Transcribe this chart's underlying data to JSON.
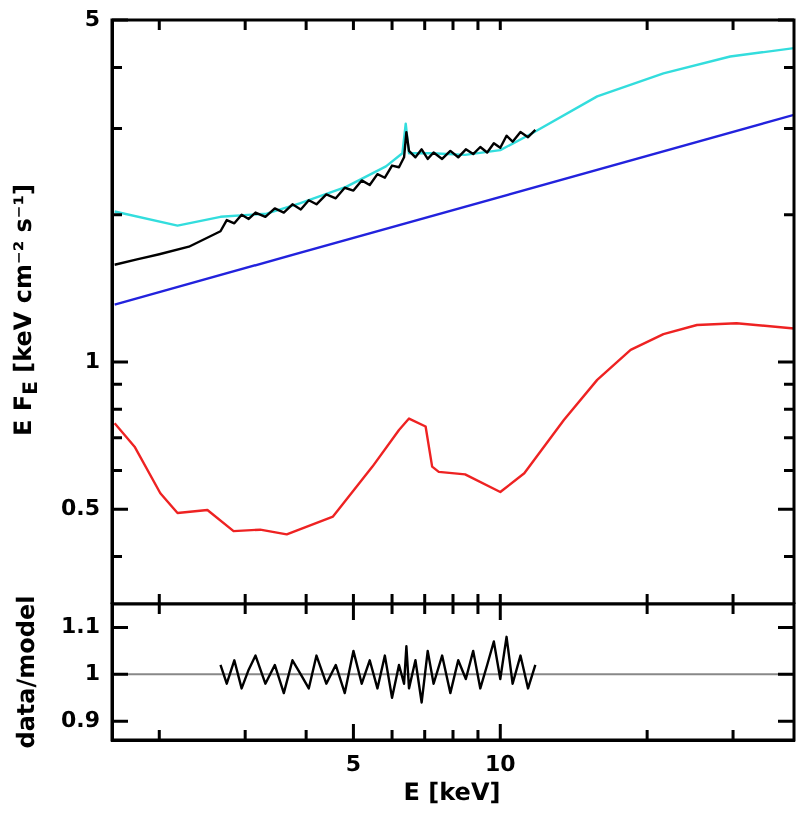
{
  "chart_data": [
    {
      "type": "line",
      "ylabel": "E F$_{E}$ [keV cm⁻² s⁻¹]",
      "log": "xy",
      "tick_labels": "y",
      "xlim": [
        1.6,
        40
      ],
      "ylim": [
        0.32,
        5
      ],
      "xticks": [
        {
          "value": 2,
          "label": null
        },
        {
          "value": 3,
          "label": null
        },
        {
          "value": 4,
          "label": null
        },
        {
          "value": 5,
          "label": null
        },
        {
          "value": 6,
          "label": null
        },
        {
          "value": 7,
          "label": null
        },
        {
          "value": 8,
          "label": null
        },
        {
          "value": 9,
          "label": null
        },
        {
          "value": 10,
          "label": null
        },
        {
          "value": 20,
          "label": null
        },
        {
          "value": 30,
          "label": null
        }
      ],
      "yticks": [
        {
          "value": 0.4,
          "label": null
        },
        0.5,
        {
          "value": 0.6,
          "label": null
        },
        {
          "value": 0.7,
          "label": null
        },
        {
          "value": 0.8,
          "label": null
        },
        {
          "value": 0.9,
          "label": null
        },
        1,
        {
          "value": 2,
          "label": null
        },
        {
          "value": 3,
          "label": null
        },
        {
          "value": 4,
          "label": null
        },
        5
      ],
      "series": [
        {
          "color": "#ee2222",
          "x": [
            1.62,
            1.78,
            2.01,
            2.18,
            2.51,
            2.84,
            3.22,
            3.65,
            4.54,
            5.47,
            6.2,
            6.5,
            7.03,
            7.25,
            7.48,
            8.47,
            10,
            11.2,
            13.5,
            15.8,
            18.5,
            21.6,
            25.3,
            30.5,
            40
          ],
          "values": [
            0.749,
            0.671,
            0.539,
            0.491,
            0.498,
            0.451,
            0.454,
            0.444,
            0.483,
            0.611,
            0.726,
            0.766,
            0.738,
            0.611,
            0.596,
            0.589,
            0.542,
            0.592,
            0.761,
            0.919,
            1.058,
            1.14,
            1.19,
            1.2,
            1.17
          ]
        },
        {
          "color": "#2222dd",
          "x": [
            1.62,
            40
          ],
          "values": [
            1.31,
            3.2
          ]
        },
        {
          "color": "#000000",
          "x": [
            1.62,
            1.8,
            2.0,
            2.3,
            2.67,
            2.75,
            2.85,
            2.95,
            3.05,
            3.15,
            3.3,
            3.45,
            3.6,
            3.75,
            3.9,
            4.05,
            4.2,
            4.4,
            4.6,
            4.8,
            5.0,
            5.2,
            5.4,
            5.6,
            5.8,
            6.0,
            6.2,
            6.35,
            6.42,
            6.5,
            6.7,
            6.9,
            7.1,
            7.3,
            7.6,
            7.9,
            8.2,
            8.5,
            8.8,
            9.1,
            9.4,
            9.7,
            10.0,
            10.3,
            10.6,
            11.0,
            11.4,
            11.8
          ],
          "values": [
            1.58,
            1.62,
            1.66,
            1.72,
            1.85,
            1.95,
            1.92,
            2.0,
            1.96,
            2.02,
            1.98,
            2.06,
            2.02,
            2.1,
            2.05,
            2.14,
            2.1,
            2.2,
            2.16,
            2.27,
            2.24,
            2.35,
            2.3,
            2.42,
            2.38,
            2.52,
            2.5,
            2.62,
            2.95,
            2.7,
            2.62,
            2.72,
            2.6,
            2.68,
            2.6,
            2.7,
            2.62,
            2.72,
            2.66,
            2.75,
            2.68,
            2.8,
            2.74,
            2.9,
            2.82,
            2.95,
            2.88,
            2.98
          ]
        },
        {
          "color": "#33dddd",
          "x": [
            1.62,
            2.18,
            2.67,
            3.32,
            3.88,
            4.83,
            5.83,
            6.3,
            6.4,
            6.5,
            7.25,
            8.47,
            10,
            11.6,
            15.8,
            21.6,
            29.6,
            40
          ],
          "values": [
            2.03,
            1.9,
            1.98,
            2.01,
            2.11,
            2.28,
            2.51,
            2.67,
            3.07,
            2.67,
            2.67,
            2.65,
            2.71,
            2.93,
            3.49,
            3.89,
            4.21,
            4.38
          ]
        }
      ]
    },
    {
      "type": "line",
      "xlabel": "E [keV]",
      "ylabel": "data/model",
      "log": "x",
      "xlim": [
        1.6,
        40
      ],
      "ylim": [
        0.86,
        1.15
      ],
      "xticks": [
        {
          "value": 2,
          "label": null
        },
        {
          "value": 3,
          "label": null
        },
        {
          "value": 4,
          "label": null
        },
        5,
        {
          "value": 6,
          "label": null
        },
        {
          "value": 7,
          "label": null
        },
        {
          "value": 8,
          "label": null
        },
        {
          "value": 9,
          "label": null
        },
        10,
        {
          "value": 20,
          "label": null
        },
        {
          "value": 30,
          "label": null
        }
      ],
      "yticks": [
        0.9,
        1,
        1.1
      ],
      "ref_lines": [
        {
          "axis": "y",
          "value": 1,
          "color": "#888888"
        }
      ],
      "series": [
        {
          "color": "#000000",
          "x": [
            2.67,
            2.75,
            2.85,
            2.95,
            3.05,
            3.15,
            3.3,
            3.45,
            3.6,
            3.75,
            3.9,
            4.05,
            4.2,
            4.4,
            4.6,
            4.8,
            5.0,
            5.2,
            5.4,
            5.6,
            5.8,
            6.0,
            6.2,
            6.35,
            6.42,
            6.5,
            6.7,
            6.9,
            7.1,
            7.3,
            7.6,
            7.9,
            8.2,
            8.5,
            8.8,
            9.1,
            9.4,
            9.7,
            10.0,
            10.3,
            10.6,
            11.0,
            11.4,
            11.8
          ],
          "values": [
            1.02,
            0.98,
            1.03,
            0.97,
            1.01,
            1.04,
            0.98,
            1.02,
            0.96,
            1.03,
            1.0,
            0.97,
            1.04,
            0.98,
            1.02,
            0.96,
            1.05,
            0.98,
            1.03,
            0.97,
            1.04,
            0.95,
            1.02,
            0.98,
            1.06,
            0.97,
            1.03,
            0.94,
            1.05,
            0.98,
            1.04,
            0.96,
            1.03,
            0.99,
            1.05,
            0.97,
            1.02,
            1.07,
            0.99,
            1.08,
            0.98,
            1.04,
            0.97,
            1.02
          ]
        }
      ]
    }
  ]
}
